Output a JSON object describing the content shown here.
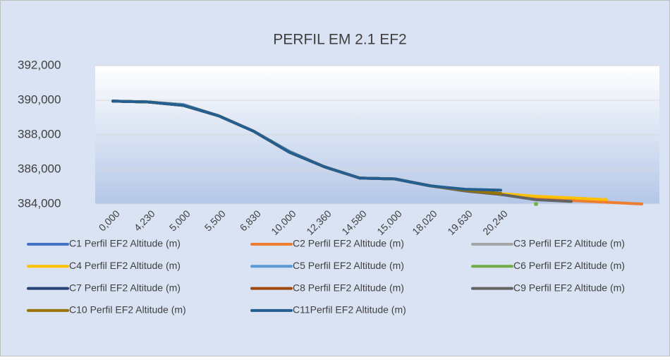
{
  "chart_data": {
    "type": "line",
    "title": "PERFIL EM 2.1 EF2",
    "categories": [
      "0,000",
      "4,230",
      "5,000",
      "5,500",
      "6,830",
      "10,000",
      "12,360",
      "14,580",
      "15,000",
      "18,020",
      "19,630",
      "20,240",
      null,
      null,
      null,
      null
    ],
    "ylim": [
      384000,
      392000
    ],
    "yticks": [
      {
        "value": 384000,
        "label": "384,000"
      },
      {
        "value": 386000,
        "label": "386,000"
      },
      {
        "value": 388000,
        "label": "388,000"
      },
      {
        "value": 390000,
        "label": "390,000"
      },
      {
        "value": 392000,
        "label": "392,000"
      }
    ],
    "grid": true,
    "series": [
      {
        "name": "C1 Perfil EF2 Altitude (m)",
        "color": "#4472c4",
        "values": [
          389950,
          389900,
          389750,
          389100,
          388200,
          387050,
          386150,
          385500,
          385450,
          385050,
          384800,
          384600,
          null,
          null,
          null,
          null
        ]
      },
      {
        "name": "C2 Perfil EF2 Altitude (m)",
        "color": "#ed7d31",
        "values": [
          389950,
          389900,
          389750,
          389100,
          388200,
          387050,
          386150,
          385500,
          385450,
          385050,
          384800,
          384600,
          384350,
          384200,
          384100,
          384000
        ]
      },
      {
        "name": "C3 Perfil EF2 Altitude (m)",
        "color": "#a5a5a5",
        "values": [
          389950,
          389900,
          389750,
          389100,
          388200,
          387050,
          386150,
          385500,
          385450,
          385050,
          384800,
          384600,
          null,
          null,
          null,
          null
        ]
      },
      {
        "name": "C4 Perfil EF2 Altitude (m)",
        "color": "#ffc000",
        "values": [
          389950,
          389900,
          389750,
          389100,
          388200,
          387050,
          386150,
          385500,
          385450,
          385050,
          384800,
          384600,
          384450,
          384350,
          384250,
          null
        ]
      },
      {
        "name": "C5 Perfil EF2 Altitude (m)",
        "color": "#5b9bd5",
        "values": [
          389950,
          389900,
          389750,
          389100,
          388200,
          387050,
          386150,
          385500,
          385450,
          385050,
          384800,
          384600,
          null,
          null,
          null,
          null
        ]
      },
      {
        "name": "C6 Perfil EF2 Altitude (m)",
        "color": "#70ad47",
        "values": [
          null,
          null,
          null,
          null,
          null,
          null,
          null,
          null,
          null,
          null,
          null,
          null,
          384000,
          null,
          null,
          null
        ]
      },
      {
        "name": "C7 Perfil EF2 Altitude (m)",
        "color": "#264478",
        "values": [
          389950,
          389900,
          389700,
          389100,
          388200,
          387000,
          386150,
          385500,
          385450,
          385050,
          384800,
          384600,
          null,
          null,
          null,
          null
        ]
      },
      {
        "name": "C8 Perfil EF2 Altitude (m)",
        "color": "#9e480e",
        "values": [
          389950,
          389900,
          389700,
          389100,
          388200,
          387000,
          386150,
          385500,
          385450,
          385050,
          384800,
          384600,
          null,
          null,
          null,
          null
        ]
      },
      {
        "name": "C9 Perfil EF2 Altitude (m)",
        "color": "#636363",
        "values": [
          389950,
          389900,
          389700,
          389100,
          388200,
          387000,
          386150,
          385500,
          385450,
          385050,
          384750,
          384550,
          384250,
          384150,
          null,
          null
        ]
      },
      {
        "name": "C10 Perfil EF2 Altitude (m)",
        "color": "#997300",
        "values": [
          389950,
          389900,
          389700,
          389100,
          388200,
          387000,
          386150,
          385500,
          385450,
          385050,
          384800,
          384600,
          null,
          null,
          null,
          null
        ]
      },
      {
        "name": "C11Perfil EF2 Altitude (m)",
        "color": "#255e91",
        "values": [
          389950,
          389900,
          389700,
          389100,
          388200,
          387000,
          386150,
          385500,
          385450,
          385050,
          384850,
          384800,
          null,
          null,
          null,
          null
        ]
      }
    ]
  }
}
